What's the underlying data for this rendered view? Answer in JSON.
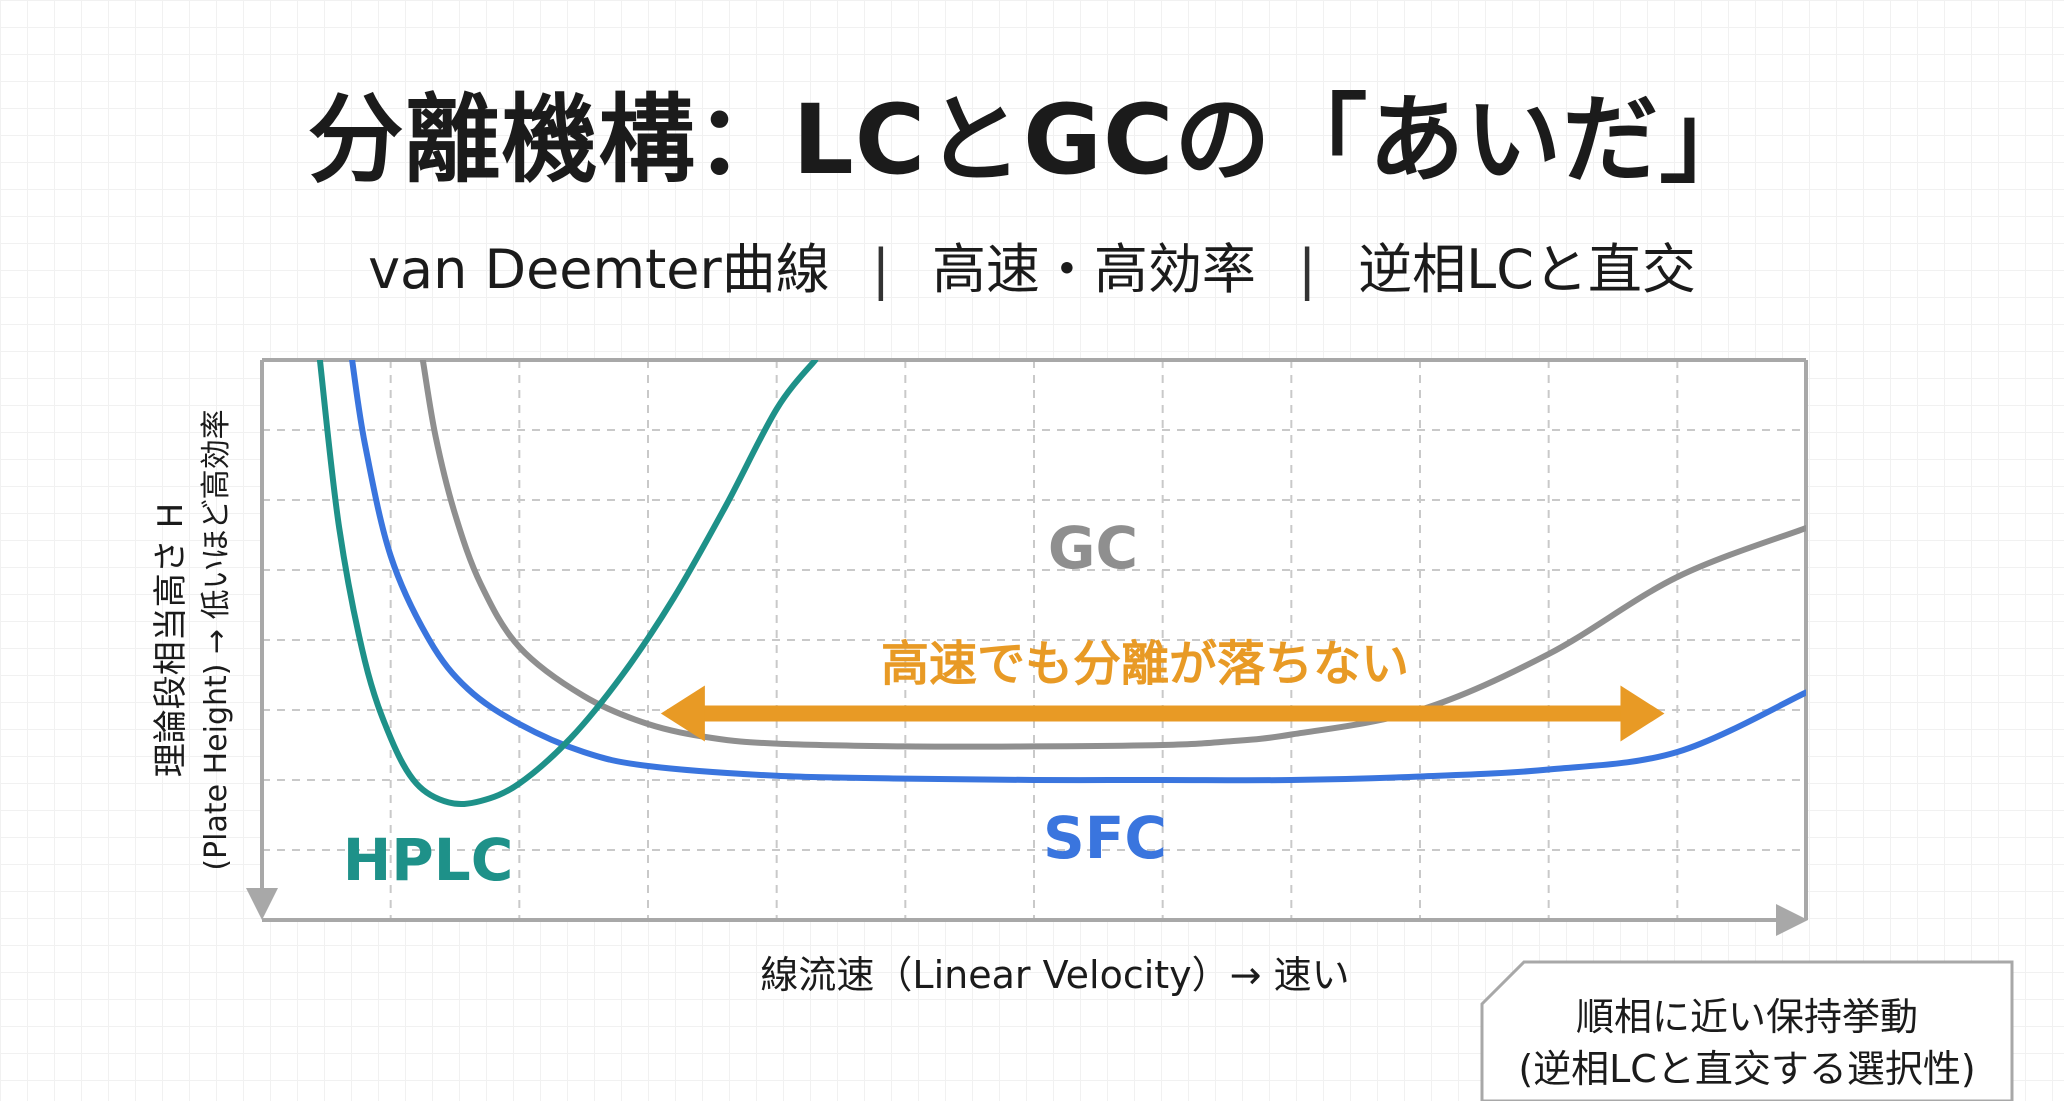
{
  "title": "分離機構：LCとGCの「あいだ」",
  "subtitle": [
    "van Deemter曲線",
    "高速・高効率",
    "逆相LCと直交"
  ],
  "chart_data": {
    "type": "line",
    "xlabel": "線流速（Linear Velocity）→ 速い",
    "ylabel_line1": "理論段相当高さ H",
    "ylabel_line2": "(Plate Height) → 低いほど高効率",
    "xlim": [
      0,
      12
    ],
    "ylim": [
      0,
      8
    ],
    "grid": true,
    "series": [
      {
        "name": "HPLC",
        "color": "#1e9189",
        "x": [
          0.45,
          0.6,
          0.8,
          1.0,
          1.2,
          1.45,
          1.7,
          2.0,
          2.4,
          2.8,
          3.2,
          3.6,
          4.0,
          4.3
        ],
        "y": [
          8.0,
          5.6,
          3.7,
          2.6,
          1.95,
          1.68,
          1.7,
          1.95,
          2.6,
          3.5,
          4.6,
          5.9,
          7.3,
          8.0
        ]
      },
      {
        "name": "SFC",
        "color": "#3a75de",
        "x": [
          0.7,
          0.8,
          1.0,
          1.3,
          1.6,
          2.0,
          2.5,
          3.0,
          4.0,
          5.0,
          6.0,
          7.0,
          8.0,
          9.0,
          10.0,
          11.0,
          12.0
        ],
        "y": [
          8.0,
          6.8,
          5.2,
          4.0,
          3.3,
          2.8,
          2.4,
          2.2,
          2.06,
          2.02,
          2.0,
          2.0,
          2.0,
          2.05,
          2.15,
          2.4,
          3.25
        ]
      },
      {
        "name": "GC",
        "color": "#8f8f8f",
        "x": [
          1.25,
          1.35,
          1.5,
          1.7,
          2.0,
          2.5,
          3.0,
          3.5,
          4.0,
          5.0,
          6.0,
          7.0,
          7.5,
          8.0,
          9.0,
          10.0,
          11.0,
          12.0
        ],
        "y": [
          8.0,
          6.9,
          5.8,
          4.8,
          3.9,
          3.2,
          2.8,
          2.6,
          2.52,
          2.48,
          2.48,
          2.5,
          2.55,
          2.65,
          3.0,
          3.8,
          4.9,
          5.6
        ]
      }
    ],
    "annotation": {
      "text": "高速でも分離が落ちない",
      "color": "#e89a25",
      "x_from": 3.1,
      "x_to": 10.9,
      "y": 2.95
    },
    "note_line1": "順相に近い保持挙動",
    "note_line2": "(逆相LCと直交する選択性)"
  }
}
